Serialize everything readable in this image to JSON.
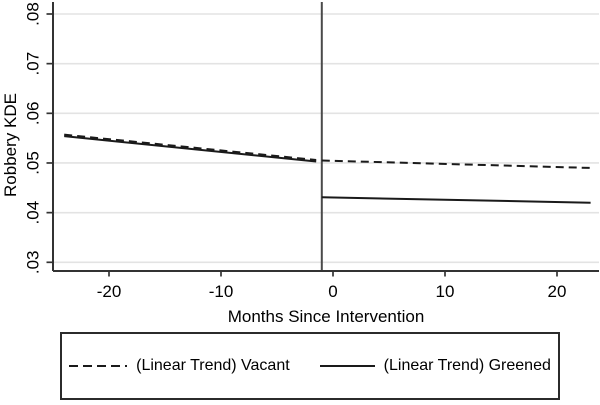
{
  "chart_data": {
    "type": "line",
    "title": "",
    "xlabel": "Months Since Intervention",
    "ylabel": "Robbery KDE",
    "xlim": [
      -25,
      23.75
    ],
    "ylim": [
      0.03,
      0.08
    ],
    "x_ticks": [
      -20,
      -10,
      0,
      10,
      20
    ],
    "y_ticks": [
      0.03,
      0.04,
      0.05,
      0.06,
      0.07,
      0.08
    ],
    "y_tick_labels": [
      ".03",
      ".04",
      ".05",
      ".06",
      ".07",
      ".08"
    ],
    "grid": "horizontal",
    "reference_line_x": -1,
    "legend_position": "bottom",
    "series": [
      {
        "name": "(Linear Trend) Greened",
        "style": "solid",
        "segments": [
          {
            "x": [
              -24,
              -1.5
            ],
            "y": [
              0.0554,
              0.0503
            ]
          },
          {
            "x": [
              -1,
              23
            ],
            "y": [
              0.0431,
              0.042
            ]
          }
        ]
      },
      {
        "name": "(Linear Trend) Vacant",
        "style": "dashed",
        "segments": [
          {
            "x": [
              -24,
              -1.5
            ],
            "y": [
              0.0557,
              0.0506
            ]
          },
          {
            "x": [
              -1,
              23
            ],
            "y": [
              0.0505,
              0.049
            ]
          }
        ]
      }
    ]
  },
  "legend": {
    "items": [
      {
        "label": "(Linear Trend) Vacant",
        "style": "dashed"
      },
      {
        "label": "(Linear Trend) Greened",
        "style": "solid"
      }
    ]
  },
  "colors": {
    "background": "#ffffff",
    "line": "#1a1a1a",
    "axis": "#333333",
    "grid": "#e3e3e3",
    "reference_line": "#4a4a4a",
    "text": "#000000",
    "legend_border": "#2b2b2b"
  }
}
